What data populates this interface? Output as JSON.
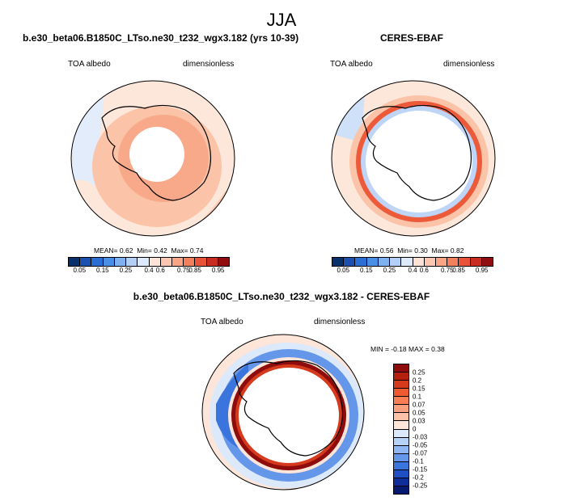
{
  "season": "JJA",
  "case_title": "b.e30_beta06.B1850C_LTso.ne30_t232_wgx3.182 (yrs 10-39)",
  "obs_title": "CERES-EBAF",
  "diff_title": "b.e30_beta06.B1850C_LTso.ne30_t232_wgx3.182 - CERES-EBAF",
  "panels": {
    "model": {
      "var": "TOA albedo",
      "units": "dimensionless",
      "mean_label": "MEAN=",
      "mean": "0.62",
      "min_label": "Min=",
      "min": "0.42",
      "max_label": "Max=",
      "max": "0.74"
    },
    "obs": {
      "var": "TOA albedo",
      "units": "dimensionless",
      "mean_label": "MEAN=",
      "mean": "0.56",
      "min_label": "Min=",
      "min": "0.30",
      "max_label": "Max=",
      "max": "0.82"
    },
    "diff": {
      "var": "TOA albedo",
      "units": "dimensionless",
      "min_label": "MIN =",
      "min": "-0.18",
      "max_label": "MAX =",
      "max": "0.38"
    }
  },
  "colorbar_levels": [
    "0.05",
    "0.15",
    "0.25",
    "0.4",
    "0.6",
    "0.75",
    "0.85",
    "0.95"
  ],
  "colorbar_colors": [
    "#08306b",
    "#1b4fb0",
    "#2c6fd4",
    "#4a8fe6",
    "#7fb0ef",
    "#b2cff5",
    "#ddeafb",
    "#fde3d6",
    "#fcc7b0",
    "#f9a585",
    "#f47f5c",
    "#e9533a",
    "#c92d22",
    "#900e10"
  ],
  "diff_levels": [
    "0.25",
    "0.2",
    "0.15",
    "0.1",
    "0.07",
    "0.05",
    "0.03",
    "0",
    "-0.03",
    "-0.05",
    "-0.07",
    "-0.1",
    "-0.15",
    "-0.2",
    "-0.25"
  ],
  "diff_colors": [
    "#8e0c0c",
    "#b5200f",
    "#d63a1d",
    "#ee5a32",
    "#f77d55",
    "#fba07f",
    "#fcc2a8",
    "#fde6d9",
    "#dce9fb",
    "#b7d2f7",
    "#8fb7f2",
    "#6496ea",
    "#3a74dd",
    "#1f50c4",
    "#0e2f99",
    "#051a70"
  ]
}
